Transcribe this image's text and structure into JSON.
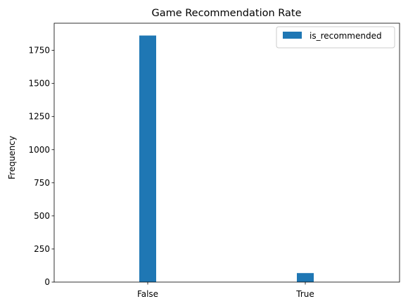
{
  "chart_data": {
    "type": "bar",
    "title": "Game Recommendation Rate",
    "xlabel": "",
    "ylabel": "Frequency",
    "categories": [
      "False",
      "True"
    ],
    "series": [
      {
        "name": "is_recommended",
        "values": [
          1862,
          68
        ],
        "color": "#1f77b4"
      }
    ],
    "ylim": [
      0,
      1955
    ],
    "yticks": [
      0,
      250,
      500,
      750,
      1000,
      1250,
      1500,
      1750
    ],
    "grid": false,
    "legend_position": "top-right"
  }
}
